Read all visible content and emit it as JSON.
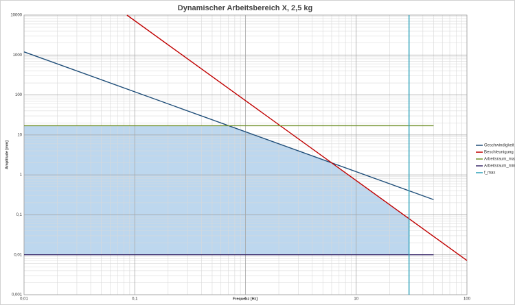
{
  "chart_data": {
    "type": "line",
    "title": "Dynamischer Arbeitsbereich X, 2,5 kg",
    "xlabel": "Frequenz [Hz]",
    "ylabel": "Amplitude [mm]",
    "xscale": "log",
    "yscale": "log",
    "grid": true,
    "minor_grid": true,
    "legend": "right",
    "xlim": [
      0.01,
      100
    ],
    "ylim": [
      0.001,
      10000
    ],
    "xticks": [
      {
        "value": 0.01,
        "label": "0,01"
      },
      {
        "value": 0.1,
        "label": "0,1"
      },
      1,
      10,
      100
    ],
    "yticks": [
      {
        "value": 0.001,
        "label": "0,001"
      },
      {
        "value": 0.01,
        "label": "0,01"
      },
      {
        "value": 0.1,
        "label": "0,1"
      },
      1,
      10,
      100,
      1000,
      10000
    ],
    "fill_color": "#bdd7ee",
    "series": [
      {
        "name": "Geschwindigkeit",
        "color": "#1f4e79",
        "x": [
          0.01,
          50
        ],
        "values": [
          1200,
          0.24
        ]
      },
      {
        "name": "Beschleunigung",
        "color": "#c00000",
        "x": [
          0.085,
          100
        ],
        "values": [
          10000,
          0.0072
        ]
      },
      {
        "name": "Arbeitsraum_max",
        "color": "#70902a",
        "x": [
          0.01,
          50
        ],
        "values": [
          17,
          17
        ]
      },
      {
        "name": "Arbeitsraum_min",
        "color": "#3a2a6a",
        "x": [
          0.01,
          50
        ],
        "values": [
          0.01,
          0.01
        ]
      },
      {
        "name": "f_max",
        "color": "#2aa0b8",
        "x": [
          30,
          30
        ],
        "values": [
          0.001,
          10000
        ]
      }
    ]
  }
}
